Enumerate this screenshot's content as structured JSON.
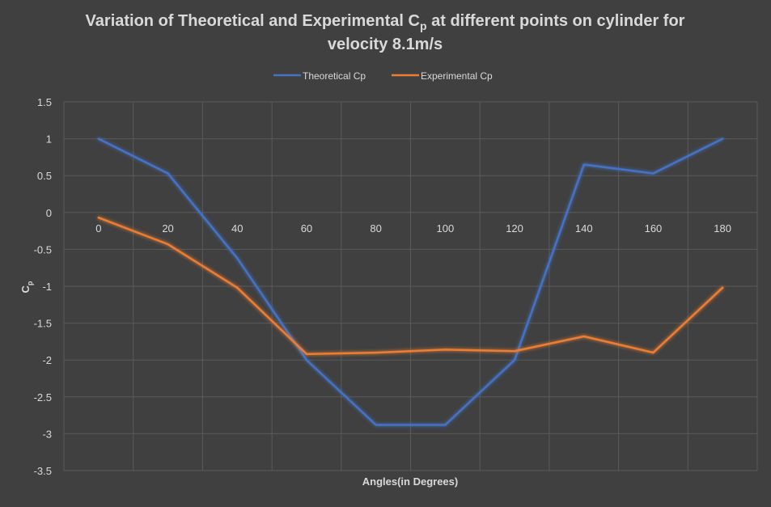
{
  "chart_data": {
    "type": "line",
    "title_line1_prefix": "Variation of Theoretical and Experimental C",
    "title_line1_sub": "p",
    "title_line1_suffix": " at different points on cylinder for",
    "title_line2": "velocity 8.1m/s",
    "xlabel": "Angles(in Degrees)",
    "ylabel_main": "C",
    "ylabel_sub": "p",
    "categories": [
      "0",
      "20",
      "40",
      "60",
      "80",
      "100",
      "120",
      "140",
      "160",
      "180"
    ],
    "ylim": [
      -3.5,
      1.5
    ],
    "yticks": [
      "1.5",
      "1",
      "0.5",
      "0",
      "-0.5",
      "-1",
      "-1.5",
      "-2",
      "-2.5",
      "-3",
      "-3.5"
    ],
    "grid": true,
    "legend_position": "top",
    "series": [
      {
        "name": "Theoretical Cp",
        "color": "#4472C4",
        "values": [
          1,
          0.53,
          -0.62,
          -2,
          -2.88,
          -2.88,
          -2,
          0.65,
          0.53,
          1
        ]
      },
      {
        "name": "Experimental Cp",
        "color": "#ED7D31",
        "values": [
          -0.07,
          -0.43,
          -1.02,
          -1.92,
          -1.9,
          -1.86,
          -1.88,
          -1.68,
          -1.9,
          -1.02
        ]
      }
    ]
  }
}
